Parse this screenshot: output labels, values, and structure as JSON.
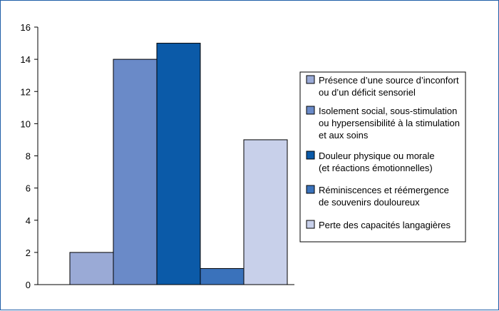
{
  "chart_data": {
    "type": "bar",
    "categories": [
      "Présence d’une source d’inconfort ou d’un déficit sensoriel",
      "Isolement social, sous-stimulation ou hypersensibilité à la stimulation et aux soins",
      "Douleur physique ou morale (et réactions émotionnelles)",
      "Réminiscences et réémergence de souvenirs douloureux",
      "Perte des capacités langagières"
    ],
    "values": [
      2,
      14,
      15,
      1,
      9
    ],
    "colors": [
      "#9aaad6",
      "#6a8ac8",
      "#0b5aa8",
      "#3a72bb",
      "#c8d0ea"
    ],
    "ylim": [
      0,
      16
    ],
    "yticks": [
      "0",
      "2",
      "4",
      "6",
      "8",
      "10",
      "12",
      "14",
      "16"
    ],
    "legend": {
      "placement": "right",
      "entries": [
        [
          "Présence d’une source d’inconfort",
          "ou d’un déficit sensoriel"
        ],
        [
          "Isolement social, sous-stimulation",
          "ou hypersensibilité à la stimulation",
          "et aux soins"
        ],
        [
          "Douleur physique ou morale",
          "(et réactions émotionnelles)"
        ],
        [
          "Réminiscences et réémergence",
          "de souvenirs douloureux"
        ],
        [
          "Perte des capacités langagières"
        ]
      ]
    },
    "grid": false
  }
}
